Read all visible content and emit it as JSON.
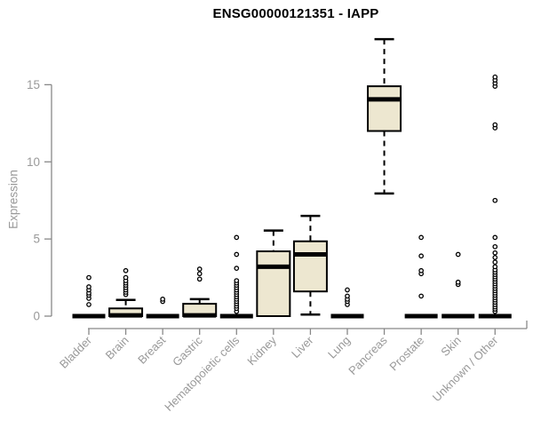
{
  "chart_data": {
    "type": "boxplot",
    "title": "ENSG00000121351 - IAPP",
    "ylabel": "Expression",
    "xlabel": "",
    "yticks": [
      0,
      5,
      10,
      15
    ],
    "ylim": [
      0,
      18.5
    ],
    "grid": false,
    "legend": "none",
    "colors": {
      "box_fill": "#EDE7D0",
      "box_border": "#000000",
      "median": "#000000",
      "whisker": "#000000",
      "axis": "#888888",
      "tick_label": "#999999",
      "title": "#000000",
      "background": "#ffffff"
    },
    "categories": [
      "Bladder",
      "Brain",
      "Breast",
      "Gastric",
      "Hematopoietic cells",
      "Kidney",
      "Liver",
      "Lung",
      "Pancreas",
      "Prostate",
      "Skin",
      "Unknown / Other"
    ],
    "series": [
      {
        "name": "Bladder",
        "low": 0,
        "q1": 0,
        "median": 0,
        "q3": 0,
        "high": 0,
        "outliers": [
          0.75,
          1.15,
          1.35,
          1.5,
          1.7,
          1.9,
          2.5
        ]
      },
      {
        "name": "Brain",
        "low": 0,
        "q1": 0,
        "median": 0.05,
        "q3": 0.5,
        "high": 1.05,
        "outliers": [
          1.4,
          1.55,
          1.7,
          1.85,
          2.0,
          2.15,
          2.3,
          2.5,
          2.95
        ]
      },
      {
        "name": "Breast",
        "low": 0,
        "q1": 0,
        "median": 0,
        "q3": 0,
        "high": 0,
        "outliers": [
          0.95,
          1.1
        ]
      },
      {
        "name": "Gastric",
        "low": 0,
        "q1": 0,
        "median": 0.05,
        "q3": 0.8,
        "high": 1.1,
        "outliers": [
          2.4,
          2.75,
          3.05
        ]
      },
      {
        "name": "Hematopoietic cells",
        "low": 0,
        "q1": 0,
        "median": 0,
        "q3": 0,
        "high": 0,
        "outliers": [
          0.3,
          0.5,
          0.65,
          0.8,
          0.95,
          1.1,
          1.25,
          1.4,
          1.55,
          1.7,
          1.85,
          2.0,
          2.15,
          2.3,
          3.1,
          4.0,
          5.1
        ]
      },
      {
        "name": "Kidney",
        "low": 0,
        "q1": 0,
        "median": 3.2,
        "q3": 4.2,
        "high": 5.55,
        "outliers": []
      },
      {
        "name": "Liver",
        "low": 0.1,
        "q1": 1.6,
        "median": 4.0,
        "q3": 4.85,
        "high": 6.5,
        "outliers": []
      },
      {
        "name": "Lung",
        "low": 0,
        "q1": 0,
        "median": 0,
        "q3": 0,
        "high": 0,
        "outliers": [
          0.75,
          0.95,
          1.1,
          1.3,
          1.7
        ]
      },
      {
        "name": "Pancreas",
        "low": 7.95,
        "q1": 12.0,
        "median": 14.05,
        "q3": 14.9,
        "high": 17.95,
        "outliers": []
      },
      {
        "name": "Prostate",
        "low": 0,
        "q1": 0,
        "median": 0,
        "q3": 0,
        "high": 0,
        "outliers": [
          1.3,
          2.75,
          2.95,
          3.9,
          5.1
        ]
      },
      {
        "name": "Skin",
        "low": 0,
        "q1": 0,
        "median": 0,
        "q3": 0,
        "high": 0,
        "outliers": [
          2.05,
          2.2,
          4.0
        ]
      },
      {
        "name": "Unknown / Other",
        "low": 0,
        "q1": 0,
        "median": 0,
        "q3": 0,
        "high": 0,
        "outliers": [
          0.3,
          0.45,
          0.6,
          0.75,
          0.9,
          1.05,
          1.2,
          1.35,
          1.5,
          1.65,
          1.8,
          1.95,
          2.1,
          2.25,
          2.4,
          2.55,
          2.7,
          2.85,
          3.0,
          3.2,
          3.5,
          3.8,
          4.1,
          4.5,
          5.1,
          7.5,
          12.2,
          12.4,
          14.9,
          15.1,
          15.3,
          15.5
        ]
      }
    ]
  }
}
